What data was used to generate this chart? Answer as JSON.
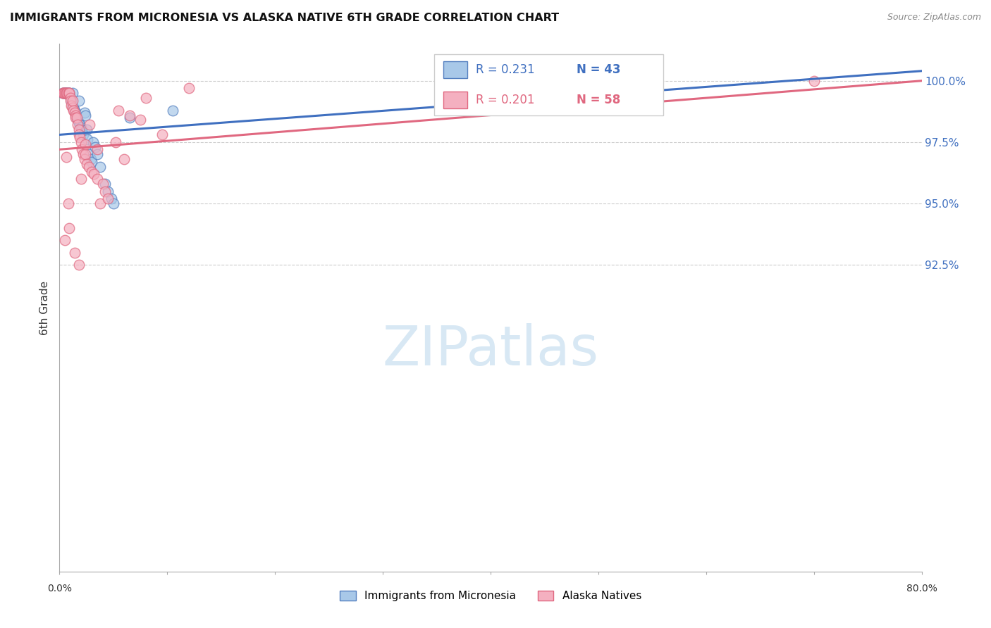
{
  "title": "IMMIGRANTS FROM MICRONESIA VS ALASKA NATIVE 6TH GRADE CORRELATION CHART",
  "source": "Source: ZipAtlas.com",
  "ylabel": "6th Grade",
  "yticks": [
    92.5,
    95.0,
    97.5,
    100.0
  ],
  "ytick_labels": [
    "92.5%",
    "95.0%",
    "97.5%",
    "100.0%"
  ],
  "xlim": [
    0.0,
    80.0
  ],
  "ylim": [
    80.0,
    101.5
  ],
  "legend_blue_R": "R = 0.231",
  "legend_blue_N": "N = 43",
  "legend_pink_R": "R = 0.201",
  "legend_pink_N": "N = 58",
  "blue_label": "Immigrants from Micronesia",
  "pink_label": "Alaska Natives",
  "blue_color": "#a8c8e8",
  "pink_color": "#f4b0c0",
  "blue_edge_color": "#5580c0",
  "pink_edge_color": "#e06880",
  "blue_line_color": "#4070c0",
  "pink_line_color": "#e06880",
  "watermark_color": "#d8e8f4",
  "blue_trend": [
    0.0,
    97.8,
    80.0,
    100.4
  ],
  "pink_trend": [
    0.0,
    97.2,
    80.0,
    100.0
  ],
  "blue_scatter_x": [
    0.3,
    0.4,
    0.5,
    0.5,
    0.6,
    0.6,
    0.7,
    0.8,
    0.9,
    0.9,
    1.0,
    1.1,
    1.2,
    1.2,
    1.3,
    1.4,
    1.5,
    1.6,
    1.7,
    1.8,
    1.8,
    1.9,
    2.0,
    2.1,
    2.2,
    2.3,
    2.4,
    2.5,
    2.6,
    2.8,
    2.9,
    3.0,
    3.1,
    3.3,
    3.5,
    3.8,
    4.2,
    4.5,
    4.8,
    5.0,
    6.5,
    10.5,
    37.0
  ],
  "blue_scatter_y": [
    99.5,
    99.5,
    99.5,
    99.5,
    99.5,
    99.5,
    99.5,
    99.5,
    99.5,
    99.5,
    99.3,
    99.2,
    99.0,
    99.5,
    98.9,
    98.8,
    98.7,
    98.5,
    98.4,
    98.3,
    99.2,
    98.2,
    98.1,
    98.0,
    97.8,
    98.7,
    98.6,
    98.0,
    97.6,
    97.0,
    96.8,
    96.7,
    97.5,
    97.3,
    97.0,
    96.5,
    95.8,
    95.5,
    95.2,
    95.0,
    98.5,
    98.8,
    100.2
  ],
  "pink_scatter_x": [
    0.3,
    0.4,
    0.4,
    0.5,
    0.5,
    0.6,
    0.6,
    0.7,
    0.8,
    0.9,
    0.9,
    1.0,
    1.0,
    1.1,
    1.2,
    1.2,
    1.3,
    1.4,
    1.5,
    1.5,
    1.6,
    1.7,
    1.8,
    1.8,
    1.9,
    2.0,
    2.1,
    2.2,
    2.3,
    2.4,
    2.5,
    2.7,
    2.8,
    3.0,
    3.2,
    3.5,
    3.8,
    4.0,
    4.2,
    4.5,
    5.2,
    5.5,
    6.0,
    6.5,
    7.5,
    8.0,
    9.5,
    12.0,
    70.0,
    2.0,
    0.6,
    0.9,
    1.4,
    1.8,
    2.4,
    3.5,
    0.5,
    0.8
  ],
  "pink_scatter_y": [
    99.5,
    99.5,
    99.5,
    99.5,
    99.5,
    99.5,
    99.5,
    99.5,
    99.5,
    99.5,
    99.5,
    99.3,
    99.2,
    99.0,
    98.9,
    99.2,
    98.8,
    98.7,
    98.6,
    98.5,
    98.5,
    98.2,
    98.0,
    97.8,
    97.7,
    97.5,
    97.2,
    97.0,
    96.8,
    97.0,
    96.6,
    96.5,
    98.2,
    96.3,
    96.2,
    96.0,
    95.0,
    95.8,
    95.5,
    95.2,
    97.5,
    98.8,
    96.8,
    98.6,
    98.4,
    99.3,
    97.8,
    99.7,
    100.0,
    96.0,
    96.9,
    94.0,
    93.0,
    92.5,
    97.4,
    97.2,
    93.5,
    95.0
  ]
}
